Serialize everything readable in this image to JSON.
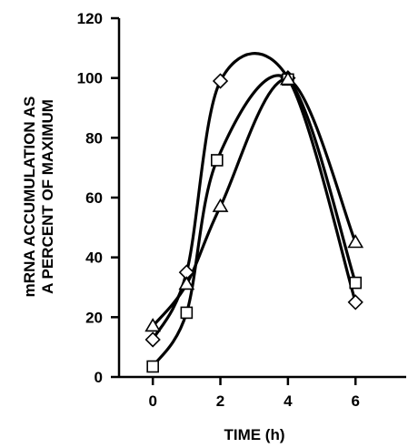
{
  "chart_data": {
    "type": "line",
    "title": "",
    "xlabel": "TIME (h)",
    "ylabel_lines": [
      "mRNA ACCUMULATION AS",
      "A PERCENT OF MAXIMUM"
    ],
    "xlim": [
      -1,
      7.5
    ],
    "ylim": [
      0,
      120
    ],
    "xticks": [
      0,
      2,
      4,
      6
    ],
    "xtick_labels": [
      "0",
      "2",
      "4",
      "6"
    ],
    "yticks": [
      0,
      20,
      40,
      60,
      80,
      100,
      120
    ],
    "ytick_labels": [
      "0",
      "20",
      "40",
      "60",
      "80",
      "100",
      "120"
    ],
    "grid": false,
    "series": [
      {
        "marker": "diamond",
        "x": [
          0,
          1,
          2,
          4,
          6
        ],
        "y": [
          12.5,
          35,
          99,
          100,
          25
        ]
      },
      {
        "marker": "square",
        "x": [
          0,
          1,
          1.9,
          4,
          6
        ],
        "y": [
          3.5,
          21.5,
          72.5,
          99.5,
          31.5
        ]
      },
      {
        "marker": "triangle",
        "x": [
          0,
          1,
          2,
          4,
          6
        ],
        "y": [
          17,
          31,
          57,
          99.5,
          45
        ]
      }
    ]
  }
}
